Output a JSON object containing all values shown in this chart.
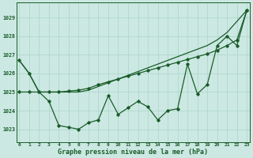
{
  "title": "Graphe pression niveau de la mer (hPa)",
  "bg_color": "#cce8e2",
  "grid_color": "#aad4cc",
  "line_color": "#1a5c2a",
  "ylim": [
    1022.3,
    1029.8
  ],
  "xlim": [
    -0.3,
    23.3
  ],
  "yticks": [
    1023,
    1024,
    1025,
    1026,
    1027,
    1028,
    1029
  ],
  "xticks": [
    0,
    1,
    2,
    3,
    4,
    5,
    6,
    7,
    8,
    9,
    10,
    11,
    12,
    13,
    14,
    15,
    16,
    17,
    18,
    19,
    20,
    21,
    22,
    23
  ],
  "line1": [
    1026.7,
    1026.0,
    1025.0,
    1025.0,
    1025.0,
    1025.0,
    1025.0,
    1025.1,
    1025.3,
    1025.5,
    1025.7,
    1025.9,
    1026.1,
    1026.3,
    1026.5,
    1026.7,
    1026.9,
    1027.1,
    1027.3,
    1027.5,
    1027.8,
    1028.2,
    1028.8,
    1029.4
  ],
  "line2": [
    1025.0,
    1025.0,
    1025.0,
    1025.0,
    1025.0,
    1025.05,
    1025.1,
    1025.2,
    1025.4,
    1025.55,
    1025.7,
    1025.85,
    1026.0,
    1026.15,
    1026.3,
    1026.45,
    1026.6,
    1026.75,
    1026.9,
    1027.05,
    1027.25,
    1027.5,
    1027.8,
    1029.4
  ],
  "line3": [
    1026.7,
    1026.0,
    1025.0,
    1024.5,
    1023.2,
    1023.1,
    1023.0,
    1023.35,
    1023.5,
    1024.8,
    1023.8,
    1024.15,
    1024.5,
    1024.2,
    1023.5,
    1024.0,
    1024.1,
    1026.5,
    1024.9,
    1025.4,
    1027.5,
    1028.0,
    1027.5,
    1029.4
  ]
}
